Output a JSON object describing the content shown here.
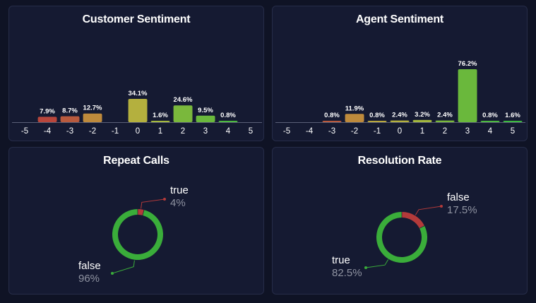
{
  "colors": {
    "background": "#0f1325",
    "panel": "#151a32",
    "axis": "#5a6078",
    "donut_green": "#3aad3a",
    "donut_red": "#b33a3a"
  },
  "chart_data": [
    {
      "id": "customer-sentiment",
      "type": "bar",
      "title": "Customer Sentiment",
      "categories": [
        "-5",
        "-4",
        "-3",
        "-2",
        "-1",
        "0",
        "1",
        "2",
        "3",
        "4",
        "5"
      ],
      "values": [
        0,
        7.9,
        8.7,
        12.7,
        0,
        34.1,
        1.6,
        24.6,
        9.5,
        0.8,
        0
      ],
      "data_labels": [
        "",
        "7.9%",
        "8.7%",
        "12.7%",
        "",
        "34.1%",
        "1.6%",
        "24.6%",
        "9.5%",
        "0.8%",
        ""
      ],
      "bar_colors": [
        "#b8463c",
        "#b8463c",
        "#b85a3e",
        "#be8a3c",
        "#b8a63c",
        "#b4b03e",
        "#a4b83e",
        "#7ab83c",
        "#6ab83c",
        "#4cb840",
        "#3cb840"
      ],
      "ylim": [
        0,
        34.1
      ],
      "xlabel": "",
      "ylabel": "",
      "grid": false,
      "legend": "none"
    },
    {
      "id": "agent-sentiment",
      "type": "bar",
      "title": "Agent Sentiment",
      "categories": [
        "-5",
        "-4",
        "-3",
        "-2",
        "-1",
        "0",
        "1",
        "2",
        "3",
        "4",
        "5"
      ],
      "values": [
        0,
        0,
        0.8,
        11.9,
        0.8,
        2.4,
        3.2,
        2.4,
        76.2,
        0.8,
        1.6
      ],
      "data_labels": [
        "",
        "",
        "0.8%",
        "11.9%",
        "0.8%",
        "2.4%",
        "3.2%",
        "2.4%",
        "76.2%",
        "0.8%",
        "1.6%"
      ],
      "bar_colors": [
        "#b8463c",
        "#b8463c",
        "#b85a3e",
        "#be8a3c",
        "#b8a63c",
        "#b4b03e",
        "#a4b83e",
        "#7ab83c",
        "#6ab83c",
        "#4cb840",
        "#3cb840"
      ],
      "ylim": [
        0,
        76.2
      ],
      "xlabel": "",
      "ylabel": "",
      "grid": false,
      "legend": "none"
    },
    {
      "id": "repeat-calls",
      "type": "pie",
      "style": "donut",
      "title": "Repeat Calls",
      "slices": [
        {
          "label": "true",
          "value": 4,
          "pct_label": "4%",
          "color": "#b33a3a",
          "callout": "top-right"
        },
        {
          "label": "false",
          "value": 96,
          "pct_label": "96%",
          "color": "#3aad3a",
          "callout": "bottom-left"
        }
      ]
    },
    {
      "id": "resolution-rate",
      "type": "pie",
      "style": "donut",
      "title": "Resolution Rate",
      "slices": [
        {
          "label": "false",
          "value": 17.5,
          "pct_label": "17.5%",
          "color": "#b33a3a",
          "callout": "top-right"
        },
        {
          "label": "true",
          "value": 82.5,
          "pct_label": "82.5%",
          "color": "#3aad3a",
          "callout": "bottom-left"
        }
      ]
    }
  ]
}
